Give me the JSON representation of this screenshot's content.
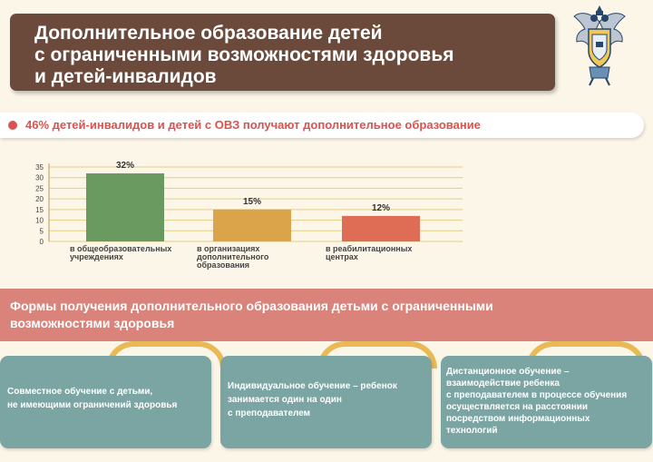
{
  "title": {
    "line1": "Дополнительное образование детей",
    "line2": "с ограниченными возможностями здоровья",
    "line3": "и детей-инвалидов"
  },
  "stat": {
    "text": "46% детей-инвалидов и детей с ОВЗ получают дополнительное образование"
  },
  "chart_data": {
    "type": "bar",
    "ylim": [
      0,
      35
    ],
    "yticks": [
      0,
      5,
      10,
      15,
      20,
      25,
      30,
      35
    ],
    "grid": true,
    "categories": [
      [
        "в общеобразовательных",
        "учреждениях"
      ],
      [
        "в организациях",
        "дополнительного",
        "образования"
      ],
      [
        "в реабилитационных",
        "центрах"
      ]
    ],
    "values": [
      32,
      15,
      12
    ],
    "value_labels": [
      "32%",
      "15%",
      "12%"
    ],
    "colors": [
      "#6a9a5f",
      "#dca44a",
      "#df6c55"
    ]
  },
  "forms": {
    "heading_line1": "Формы получения дополнительного образования детьми с ограниченными",
    "heading_line2": "возможностями здоровья",
    "cards": [
      {
        "lines": [
          "Совместное обучение с детьми,",
          "не имеющими ограничений здоровья"
        ]
      },
      {
        "lines": [
          "Индивидуальное обучение – ребенок",
          "занимается один на один",
          "с преподавателем"
        ]
      },
      {
        "lines": [
          "Дистанционное обучение –",
          "взаимодействие ребенка",
          "с преподавателем в процессе обучения",
          "осуществляется на расстоянии",
          "посредством информационных",
          "технологий"
        ]
      }
    ]
  },
  "colors": {
    "title_bg": "#6b4a3c",
    "accent_red": "#d9534f",
    "banner": "#d9837a",
    "card": "#7ba5a3",
    "arc": "#e8b955",
    "background": "#fbf6e8"
  },
  "emblem": {
    "icon": "double-headed-eagle-emblem-icon"
  }
}
